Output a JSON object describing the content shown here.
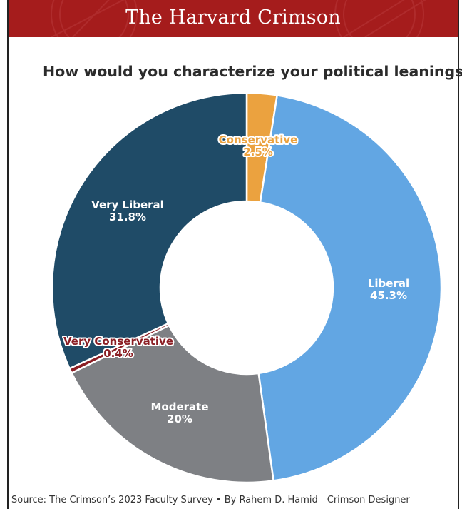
{
  "header": {
    "publication": "The Harvard Crimson"
  },
  "footer": {
    "source": "Source: The Crimson’s 2023 Faculty Survey • By Rahem D. Hamid—Crimson Designer"
  },
  "chart_data": {
    "type": "pie",
    "style": "donut",
    "title": "How would you characterize your political leanings?",
    "start_angle_deg": 0,
    "direction": "clockwise",
    "slices": [
      {
        "label": "Conservative",
        "value": 2.5,
        "value_label": "2.5%",
        "color": "#eba23f",
        "label_style": "outline"
      },
      {
        "label": "Liberal",
        "value": 45.3,
        "value_label": "45.3%",
        "color": "#62a6e3",
        "label_style": "plain"
      },
      {
        "label": "Moderate",
        "value": 20,
        "value_label": "20%",
        "color": "#7e8084",
        "label_style": "plain"
      },
      {
        "label": "Very Conservative",
        "value": 0.4,
        "value_label": "0.4%",
        "color": "#8b1e24",
        "label_style": "outline"
      },
      {
        "label": "Very Liberal",
        "value": 31.8,
        "value_label": "31.8%",
        "color": "#1f4b67",
        "label_style": "plain"
      }
    ]
  }
}
